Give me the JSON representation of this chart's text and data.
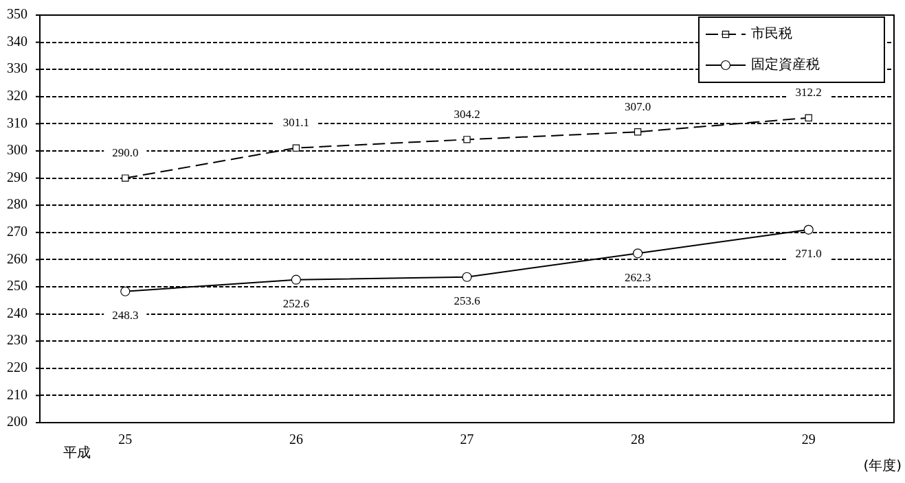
{
  "chart_data": {
    "type": "line",
    "xlabel": "(年度)",
    "annotations": [
      "平成"
    ],
    "categories": [
      "25",
      "26",
      "27",
      "28",
      "29"
    ],
    "series": [
      {
        "name": "市民税",
        "color": "#000000",
        "values": [
          290.0,
          301.1,
          304.2,
          307.0,
          312.2
        ],
        "value_labels": [
          "290.0",
          "301.1",
          "304.2",
          "307.0",
          "312.2"
        ],
        "marker": "square",
        "line_style": "dashed"
      },
      {
        "name": "固定資産税",
        "color": "#000000",
        "values": [
          248.3,
          252.6,
          253.6,
          262.3,
          271.0
        ],
        "value_labels": [
          "248.3",
          "252.6",
          "253.6",
          "262.3",
          "271.0"
        ],
        "marker": "circle",
        "line_style": "solid"
      }
    ],
    "ylim": [
      200,
      350
    ],
    "yticks": [
      200,
      210,
      220,
      230,
      240,
      250,
      260,
      270,
      280,
      290,
      300,
      310,
      320,
      330,
      340,
      350
    ],
    "grid": "y",
    "legend": "top right"
  }
}
